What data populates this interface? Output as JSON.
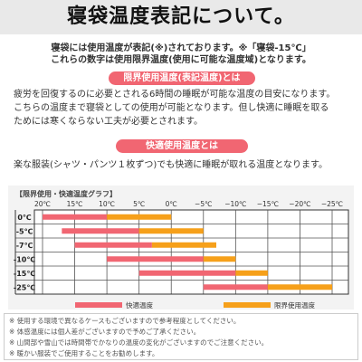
{
  "header": {
    "title": "寝袋温度表記について。"
  },
  "intro": {
    "line1": "寝袋には使用温度が表記(※)されております。※「寝袋-15℃」",
    "line2": "これらの数字は使用限界温度(使用に可能な温度域)となります。"
  },
  "limit_section": {
    "heading": "限界使用温度(表記温度)とは",
    "lines": [
      "疲労を回復するのに必要とされる6時間の睡眠が可能な温度の目安になります。",
      "こちらの温度まで寝袋としての使用が可能となります。但し快適に睡眠を取る",
      "ためには寒くならない工夫が必要とされます。"
    ]
  },
  "comfort_section": {
    "heading": "快適使用温度とは",
    "line": "楽な服装(シャツ・パンツ１枚ずつ)でも快適に睡眠が取れる温度となります。"
  },
  "chart": {
    "title": "【限界使用・快適温度グラフ】",
    "legend": {
      "comfort": "快適温度",
      "limit": "限界使用温度"
    }
  },
  "colors": {
    "comfort": "#f16672",
    "limit": "#f6a01a",
    "pill": "#f16672"
  },
  "chart_data": {
    "type": "bar",
    "orientation": "horizontal-range",
    "title": "【限界使用・快適温度グラフ】",
    "x_ticks": [
      "20℃",
      "15℃",
      "10℃",
      "5℃",
      "0℃",
      "−5℃",
      "−10℃",
      "−15℃",
      "−20℃",
      "−25℃"
    ],
    "x_values": [
      20,
      15,
      10,
      5,
      0,
      -5,
      -10,
      -15,
      -20,
      -25
    ],
    "xlim": [
      20,
      -25
    ],
    "categories": [
      "0℃",
      "-5℃",
      "-7℃",
      "-10℃",
      "-15℃",
      "-25℃"
    ],
    "series": [
      {
        "name": "快適温度",
        "ranges": [
          [
            20,
            10
          ],
          [
            17,
            5
          ],
          [
            15,
            3
          ],
          [
            10,
            -5
          ],
          [
            5,
            -10
          ],
          [
            -5,
            -15
          ]
        ]
      },
      {
        "name": "限界使用温度",
        "ranges": [
          [
            10,
            0
          ],
          [
            5,
            -5
          ],
          [
            3,
            -7
          ],
          [
            -5,
            -10
          ],
          [
            -10,
            -15
          ],
          [
            -15,
            -25
          ]
        ]
      }
    ],
    "grid": true,
    "legend_position": "bottom"
  },
  "notes": [
    "※ 使用する環境で異なるケースもございますので参考程度としてください。",
    "※ 体感温度には個人差がございますので予めご了承ください。",
    "※ 山間部や雪山では時間帯でかなりの温度の変化がございますのでご注意ください。",
    "※ 暖かい服装でご使用することをお勧めします。"
  ]
}
